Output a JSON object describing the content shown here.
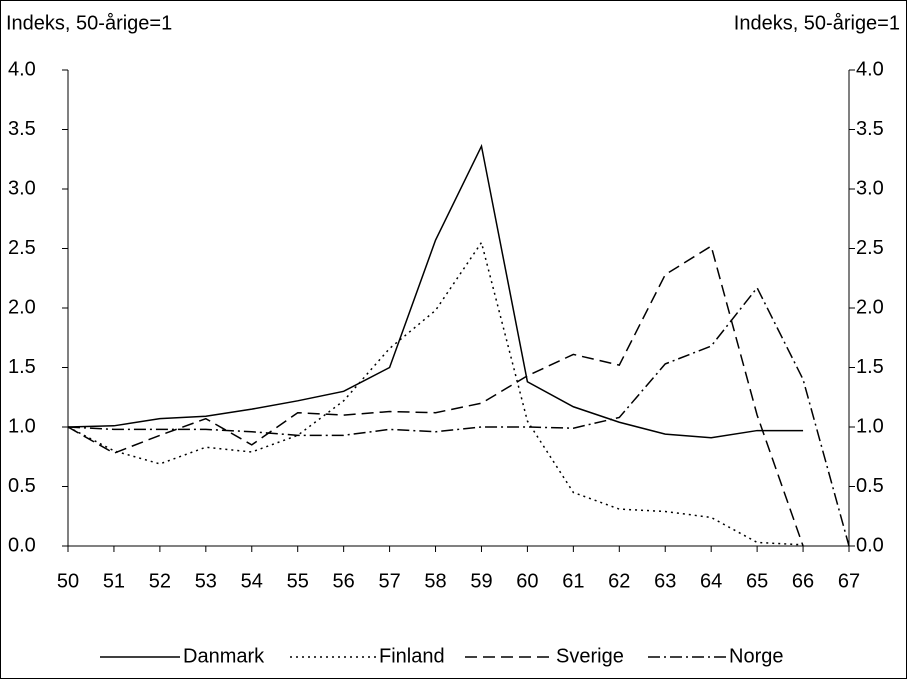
{
  "chart_data": {
    "type": "line",
    "ylabel": "Indeks, 50-årige=1",
    "y2label": "Indeks, 50-årige=1",
    "categories": [
      "50",
      "51",
      "52",
      "53",
      "54",
      "55",
      "56",
      "57",
      "58",
      "59",
      "60",
      "61",
      "62",
      "63",
      "64",
      "65",
      "66",
      "67"
    ],
    "series": [
      {
        "name": "Danmark",
        "color": "#000000",
        "dash": "none",
        "values": [
          1.0,
          1.01,
          1.07,
          1.09,
          1.15,
          1.22,
          1.3,
          1.5,
          2.57,
          3.36,
          1.38,
          1.17,
          1.04,
          0.94,
          0.91,
          0.97,
          0.97,
          null
        ]
      },
      {
        "name": "Finland",
        "color": "#000000",
        "dash": "2,4",
        "values": [
          1.0,
          0.8,
          0.69,
          0.83,
          0.79,
          0.93,
          1.22,
          1.66,
          1.98,
          2.55,
          1.05,
          0.45,
          0.31,
          0.29,
          0.24,
          0.03,
          0.01,
          null
        ]
      },
      {
        "name": "Sverige",
        "color": "#000000",
        "dash": "12,6",
        "values": [
          1.0,
          0.78,
          0.93,
          1.07,
          0.85,
          1.12,
          1.1,
          1.13,
          1.12,
          1.2,
          1.43,
          1.61,
          1.52,
          2.28,
          2.52,
          1.1,
          0.0,
          null
        ]
      },
      {
        "name": "Norge",
        "color": "#000000",
        "dash": "12,4,2,4",
        "values": [
          1.0,
          0.98,
          0.98,
          0.98,
          0.96,
          0.93,
          0.93,
          0.98,
          0.96,
          1.0,
          1.0,
          0.99,
          1.08,
          1.53,
          1.68,
          2.17,
          1.4,
          0.0
        ]
      }
    ],
    "ylim": [
      0,
      4
    ],
    "yticks": [
      {
        "value": 0,
        "label": "0.0"
      },
      {
        "value": 0.5,
        "label": "0.5"
      },
      {
        "value": 1,
        "label": "1.0"
      },
      {
        "value": 1.5,
        "label": "1.5"
      },
      {
        "value": 2,
        "label": "2.0"
      },
      {
        "value": 2.5,
        "label": "2.5"
      },
      {
        "value": 3,
        "label": "3.0"
      },
      {
        "value": 3.5,
        "label": "3.5"
      },
      {
        "value": 4,
        "label": "4.0"
      }
    ],
    "y2lim": [
      0,
      4
    ],
    "y2ticks": [
      {
        "value": 0,
        "label": "0.0"
      },
      {
        "value": 0.5,
        "label": "0.5"
      },
      {
        "value": 1,
        "label": "1.0"
      },
      {
        "value": 1.5,
        "label": "1.5"
      },
      {
        "value": 2,
        "label": "2.0"
      },
      {
        "value": 2.5,
        "label": "2.5"
      },
      {
        "value": 3,
        "label": "3.0"
      },
      {
        "value": 3.5,
        "label": "3.5"
      },
      {
        "value": 4,
        "label": "4.0"
      }
    ],
    "grid": false,
    "legend": "bottom"
  }
}
